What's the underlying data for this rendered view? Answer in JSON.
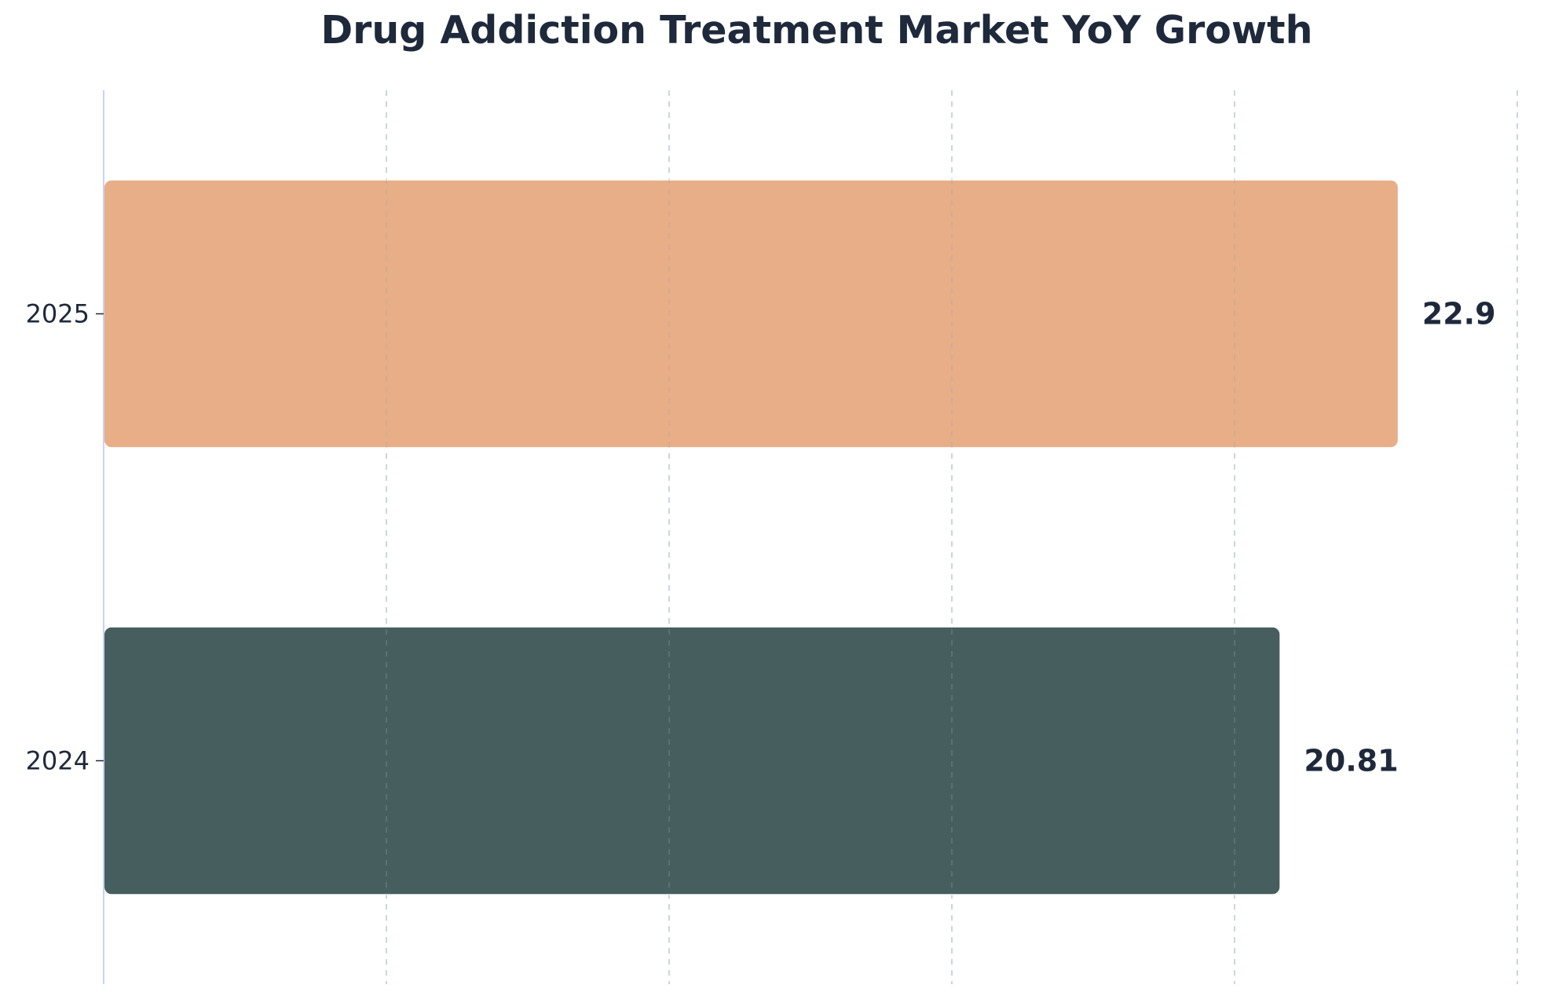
{
  "chart_data": {
    "type": "bar",
    "orientation": "horizontal",
    "title": "Drug Addiction Treatment Market YoY Growth",
    "xlabel": "",
    "ylabel": "",
    "categories": [
      "2024",
      "2025"
    ],
    "values": [
      20.81,
      22.9
    ],
    "value_labels": [
      "20.81",
      "22.9"
    ],
    "colors": [
      "#475e5f",
      "#e8ae87"
    ],
    "xlim": [
      0,
      25
    ],
    "grid": "vertical dashed",
    "x_ticks_visible": false
  }
}
